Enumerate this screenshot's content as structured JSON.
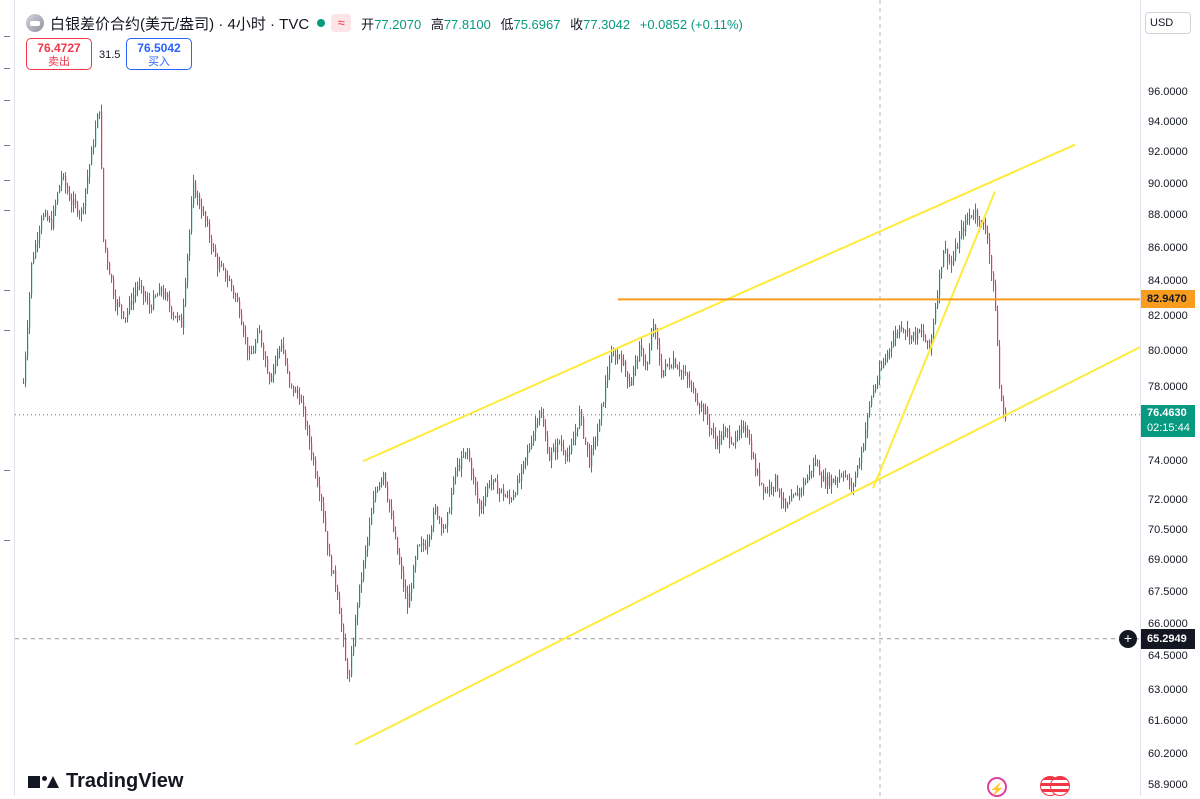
{
  "header": {
    "title": "白银差价合约(美元/盎司) · 4小时 · TVC",
    "approx_symbol": "≈",
    "ohlc": [
      {
        "label": "开",
        "value": "77.2070"
      },
      {
        "label": "高",
        "value": "77.8100"
      },
      {
        "label": "低",
        "value": "75.6967"
      },
      {
        "label": "收",
        "value": "77.3042"
      },
      {
        "label": "",
        "value": "+0.0852 (+0.11%)"
      }
    ]
  },
  "trade": {
    "sell_price": "76.4727",
    "sell_label": "卖出",
    "spread": "31.5",
    "buy_price": "76.5042",
    "buy_label": "买入"
  },
  "axis": {
    "currency": "USD",
    "ticks": [
      "96.0000",
      "94.0000",
      "92.0000",
      "90.0000",
      "88.0000",
      "86.0000",
      "84.0000",
      "82.0000",
      "80.0000",
      "78.0000",
      "74.0000",
      "72.0000",
      "70.5000",
      "69.0000",
      "67.5000",
      "66.0000",
      "64.5000",
      "63.0000",
      "61.6000",
      "60.2000",
      "58.9000"
    ],
    "level_label": "82.9470",
    "last_price": "76.4630",
    "countdown": "02:15:44",
    "cross_price": "65.2949"
  },
  "brand": {
    "name": "TradingView"
  },
  "icons": {
    "flash": "flash-icon",
    "flag": "us-flag-icon",
    "cross": "plus-circle-icon"
  },
  "colors": {
    "up": "#089981",
    "down": "#f23645",
    "trendline": "#ffeb3b",
    "level": "#f89d1e"
  },
  "chart_data": {
    "type": "candlestick",
    "symbol": "白银差价合约(美元/盎司)",
    "timeframe": "4小时",
    "scale": "log",
    "ylim": [
      58.9,
      96.0
    ],
    "horizontal_level": 82.947,
    "last_price": 76.463,
    "crosshair_price": 65.2949,
    "path": [
      [
        0,
        78.2
      ],
      [
        8,
        85.0
      ],
      [
        18,
        88.0
      ],
      [
        28,
        87.5
      ],
      [
        38,
        90.5
      ],
      [
        48,
        88.8
      ],
      [
        58,
        88.2
      ],
      [
        66,
        91.2
      ],
      [
        76,
        95.0
      ],
      [
        80,
        86.5
      ],
      [
        92,
        82.8
      ],
      [
        102,
        82.0
      ],
      [
        114,
        83.8
      ],
      [
        126,
        82.5
      ],
      [
        138,
        83.5
      ],
      [
        148,
        82.3
      ],
      [
        158,
        81.5
      ],
      [
        170,
        89.8
      ],
      [
        180,
        88.0
      ],
      [
        194,
        85.0
      ],
      [
        206,
        84.0
      ],
      [
        216,
        82.4
      ],
      [
        226,
        79.5
      ],
      [
        236,
        81.0
      ],
      [
        246,
        78.5
      ],
      [
        258,
        80.5
      ],
      [
        266,
        78.0
      ],
      [
        276,
        77.5
      ],
      [
        286,
        75.0
      ],
      [
        298,
        72.0
      ],
      [
        306,
        69.0
      ],
      [
        314,
        67.5
      ],
      [
        322,
        64.2
      ],
      [
        326,
        63.5
      ],
      [
        334,
        67.0
      ],
      [
        344,
        70.0
      ],
      [
        352,
        72.5
      ],
      [
        360,
        73.5
      ],
      [
        368,
        71.0
      ],
      [
        376,
        68.8
      ],
      [
        384,
        66.8
      ],
      [
        394,
        69.5
      ],
      [
        402,
        69.8
      ],
      [
        412,
        71.5
      ],
      [
        422,
        70.5
      ],
      [
        432,
        73.5
      ],
      [
        444,
        74.5
      ],
      [
        456,
        71.5
      ],
      [
        466,
        73.0
      ],
      [
        476,
        72.5
      ],
      [
        486,
        72.0
      ],
      [
        496,
        73.0
      ],
      [
        506,
        74.8
      ],
      [
        516,
        76.8
      ],
      [
        526,
        74.2
      ],
      [
        536,
        75.0
      ],
      [
        546,
        74.2
      ],
      [
        556,
        76.5
      ],
      [
        566,
        74.0
      ],
      [
        576,
        76.0
      ],
      [
        586,
        79.5
      ],
      [
        596,
        79.8
      ],
      [
        606,
        78.2
      ],
      [
        616,
        80.0
      ],
      [
        624,
        79.2
      ],
      [
        630,
        81.5
      ],
      [
        638,
        78.8
      ],
      [
        650,
        79.5
      ],
      [
        662,
        78.5
      ],
      [
        672,
        77.5
      ],
      [
        682,
        76.5
      ],
      [
        692,
        75.0
      ],
      [
        702,
        75.5
      ],
      [
        712,
        75.0
      ],
      [
        722,
        76.0
      ],
      [
        732,
        73.5
      ],
      [
        742,
        72.5
      ],
      [
        752,
        73.0
      ],
      [
        762,
        71.5
      ],
      [
        772,
        72.2
      ],
      [
        782,
        73.0
      ],
      [
        792,
        74.0
      ],
      [
        800,
        73.0
      ],
      [
        810,
        73.0
      ],
      [
        820,
        73.5
      ],
      [
        828,
        72.5
      ],
      [
        838,
        74.5
      ],
      [
        848,
        77.5
      ],
      [
        858,
        79.0
      ],
      [
        868,
        80.5
      ],
      [
        878,
        81.5
      ],
      [
        888,
        80.8
      ],
      [
        898,
        81.0
      ],
      [
        906,
        80.0
      ],
      [
        914,
        83.5
      ],
      [
        920,
        86.0
      ],
      [
        928,
        85.0
      ],
      [
        938,
        87.0
      ],
      [
        946,
        88.0
      ],
      [
        952,
        88.2
      ],
      [
        958,
        87.5
      ],
      [
        964,
        86.8
      ],
      [
        968,
        84.5
      ],
      [
        972,
        82.5
      ],
      [
        976,
        78.0
      ],
      [
        980,
        76.5
      ],
      [
        983,
        76.46
      ]
    ],
    "trendlines": [
      {
        "x1": 348,
        "p1": 74.0,
        "x2": 1060,
        "p2": 92.5
      },
      {
        "x1": 340,
        "p1": 60.6,
        "x2": 1125,
        "p2": 80.2
      },
      {
        "x1": 858,
        "p1": 72.6,
        "x2": 980,
        "p2": 89.5
      }
    ],
    "level_line": {
      "x1": 603,
      "x2": 1125,
      "price": 82.947
    }
  }
}
